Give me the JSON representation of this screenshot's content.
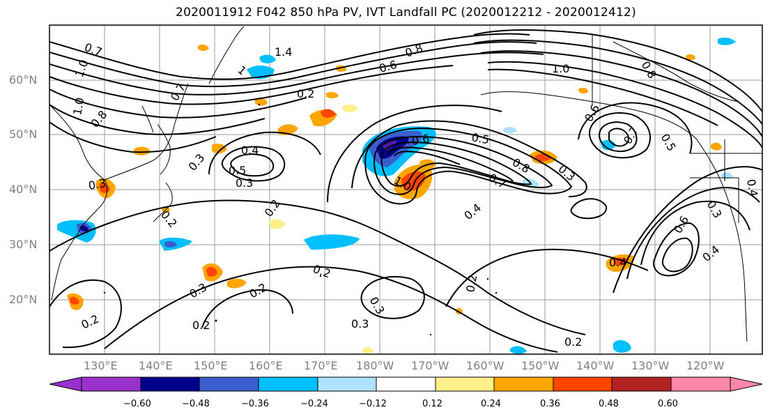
{
  "title": "2020011912 F042 850 hPa PV, IVT Landfall PC (2020012212 - 2020012412)",
  "map": {
    "projection": "PlateCarree",
    "extent": {
      "lon_min": 120,
      "lon_max": 245,
      "lat_min": 10,
      "lat_max": 70
    },
    "lat_labels": [
      "20°N",
      "30°N",
      "40°N",
      "50°N",
      "60°N"
    ],
    "lon_labels": [
      "130°E",
      "140°E",
      "150°E",
      "160°E",
      "170°E",
      "180°W",
      "170°W",
      "160°W",
      "150°W",
      "140°W",
      "130°W",
      "120°W"
    ],
    "grid": true,
    "contour_labels": [
      {
        "text": "0.7"
      },
      {
        "text": "1.0"
      },
      {
        "text": "1.0"
      },
      {
        "text": "0.8"
      },
      {
        "text": "1.4"
      },
      {
        "text": "1"
      },
      {
        "text": "0.7"
      },
      {
        "text": "0.2"
      },
      {
        "text": "0.8"
      },
      {
        "text": "0.6"
      },
      {
        "text": "1.0"
      },
      {
        "text": "0.8"
      },
      {
        "text": "0.6"
      },
      {
        "text": "0.7"
      },
      {
        "text": "0.5"
      },
      {
        "text": "0.4"
      },
      {
        "text": "0.5"
      },
      {
        "text": "0.3"
      },
      {
        "text": "0.2"
      },
      {
        "text": "0.3"
      },
      {
        "text": "0.3"
      },
      {
        "text": "0.2"
      },
      {
        "text": "0.6"
      },
      {
        "text": "0.5"
      },
      {
        "text": "0.8"
      },
      {
        "text": "0.3"
      },
      {
        "text": "0.7"
      },
      {
        "text": "1.0"
      },
      {
        "text": "0.4"
      },
      {
        "text": "0.2"
      },
      {
        "text": "0.2"
      },
      {
        "text": "0.3"
      },
      {
        "text": "0.2"
      },
      {
        "text": "0.2"
      },
      {
        "text": "0.3"
      },
      {
        "text": "0.3"
      },
      {
        "text": "0.2"
      },
      {
        "text": "0.2"
      },
      {
        "text": "0.4"
      },
      {
        "text": "0.6"
      },
      {
        "text": "0.4"
      },
      {
        "text": "0.3"
      },
      {
        "text": "0.4"
      }
    ]
  },
  "colorbar": {
    "ticks": [
      "−0.60",
      "−0.48",
      "−0.36",
      "−0.24",
      "−0.12",
      "0.12",
      "0.24",
      "0.36",
      "0.48",
      "0.60"
    ],
    "colors": [
      "#9932cc",
      "#00008b",
      "#3a5fcd",
      "#00bfff",
      "#b0e2ff",
      "#ffffff",
      "#fff08a",
      "#ffa500",
      "#ff4500",
      "#b22222",
      "#ff88aa"
    ]
  },
  "chart_data": {
    "type": "heatmap",
    "title": "2020011912 F042 850 hPa PV, IVT Landfall PC (2020012212 - 2020012412)",
    "xlabel": "",
    "ylabel": "",
    "xlim": [
      120,
      245
    ],
    "ylim": [
      10,
      70
    ],
    "color_levels": [
      -0.6,
      -0.48,
      -0.36,
      -0.24,
      -0.12,
      0.12,
      0.24,
      0.36,
      0.48,
      0.6
    ],
    "contour_field": "850 hPa PV",
    "shaded_field": "IVT Landfall PC"
  }
}
